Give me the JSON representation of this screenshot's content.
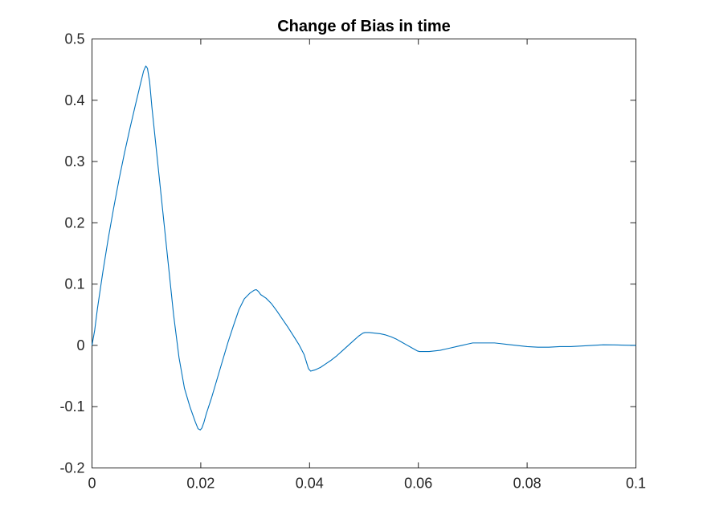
{
  "chart_data": {
    "type": "line",
    "title": "Change of Bias in time",
    "xlabel": "",
    "ylabel": "",
    "xlim": [
      0,
      0.1
    ],
    "ylim": [
      -0.2,
      0.5
    ],
    "x_ticks": [
      "0",
      "0.02",
      "0.04",
      "0.06",
      "0.08",
      "0.1"
    ],
    "x_tick_values": [
      0,
      0.02,
      0.04,
      0.06,
      0.08,
      0.1
    ],
    "y_ticks": [
      "-0.2",
      "-0.1",
      "0",
      "0.1",
      "0.2",
      "0.3",
      "0.4",
      "0.5"
    ],
    "y_tick_values": [
      -0.2,
      -0.1,
      0,
      0.1,
      0.2,
      0.3,
      0.4,
      0.5
    ],
    "grid": false,
    "box": true,
    "line_color": "#0072BD",
    "series": [
      {
        "x": [
          0,
          0.0005,
          0.001,
          0.002,
          0.003,
          0.004,
          0.005,
          0.006,
          0.007,
          0.008,
          0.009,
          0.0095,
          0.0099,
          0.0102,
          0.0106,
          0.011,
          0.012,
          0.013,
          0.014,
          0.015,
          0.016,
          0.017,
          0.018,
          0.019,
          0.0195,
          0.0199,
          0.0202,
          0.0206,
          0.021,
          0.022,
          0.023,
          0.024,
          0.025,
          0.026,
          0.027,
          0.028,
          0.029,
          0.0298,
          0.0302,
          0.0306,
          0.031,
          0.032,
          0.033,
          0.034,
          0.035,
          0.036,
          0.037,
          0.038,
          0.039,
          0.0398,
          0.0402,
          0.0406,
          0.041,
          0.042,
          0.043,
          0.044,
          0.045,
          0.046,
          0.047,
          0.048,
          0.049,
          0.0498,
          0.0502,
          0.051,
          0.052,
          0.053,
          0.054,
          0.055,
          0.056,
          0.057,
          0.058,
          0.059,
          0.0598,
          0.0602,
          0.061,
          0.062,
          0.063,
          0.064,
          0.065,
          0.066,
          0.067,
          0.068,
          0.069,
          0.07,
          0.071,
          0.072,
          0.073,
          0.074,
          0.075,
          0.076,
          0.077,
          0.078,
          0.079,
          0.08,
          0.082,
          0.084,
          0.086,
          0.088,
          0.09,
          0.092,
          0.094,
          0.096,
          0.098,
          0.1
        ],
        "y": [
          0,
          0.025,
          0.06,
          0.12,
          0.175,
          0.225,
          0.272,
          0.315,
          0.355,
          0.393,
          0.43,
          0.448,
          0.456,
          0.452,
          0.43,
          0.39,
          0.305,
          0.22,
          0.135,
          0.05,
          -0.02,
          -0.07,
          -0.1,
          -0.125,
          -0.136,
          -0.138,
          -0.135,
          -0.125,
          -0.112,
          -0.085,
          -0.055,
          -0.025,
          0.005,
          0.032,
          0.058,
          0.076,
          0.085,
          0.09,
          0.091,
          0.088,
          0.083,
          0.077,
          0.068,
          0.056,
          0.043,
          0.03,
          0.016,
          0.002,
          -0.015,
          -0.038,
          -0.042,
          -0.041,
          -0.04,
          -0.036,
          -0.03,
          -0.024,
          -0.017,
          -0.009,
          -0.001,
          0.007,
          0.015,
          0.02,
          0.021,
          0.021,
          0.02,
          0.019,
          0.017,
          0.014,
          0.01,
          0.005,
          0,
          -0.005,
          -0.009,
          -0.01,
          -0.01,
          -0.01,
          -0.009,
          -0.008,
          -0.006,
          -0.004,
          -0.002,
          0,
          0.002,
          0.004,
          0.004,
          0.004,
          0.004,
          0.004,
          0.003,
          0.002,
          0.001,
          0,
          -0.001,
          -0.002,
          -0.003,
          -0.003,
          -0.002,
          -0.002,
          -0.001,
          0,
          0.001,
          0.0008,
          0.0003,
          0
        ]
      }
    ]
  }
}
